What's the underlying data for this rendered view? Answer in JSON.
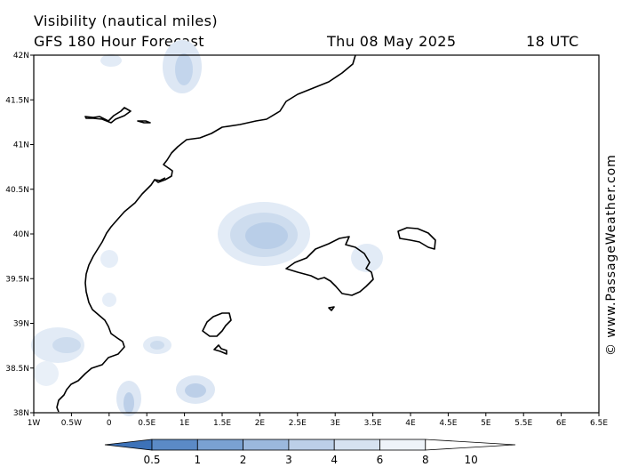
{
  "header": {
    "line1": "Visibility (nautical miles)",
    "line2": "GFS 180 Hour Forecast",
    "date": "Thu 08 May 2025",
    "time": "18 UTC"
  },
  "credit": "© www.PassageWeather.com",
  "map": {
    "lat_labels": [
      "42N",
      "41.5N",
      "41N",
      "40.5N",
      "40N",
      "39.5N",
      "39N",
      "38.5N",
      "38N"
    ],
    "lon_labels": [
      "1W",
      "0.5W",
      "0",
      "0.5E",
      "1E",
      "1.5E",
      "2E",
      "2.5E",
      "3E",
      "3.5E",
      "4E",
      "4.5E",
      "5E",
      "5.5E",
      "6E",
      "6.5E"
    ],
    "lat_range": [
      38,
      42
    ],
    "lon_range": [
      -1,
      6.5
    ]
  },
  "legend": {
    "labels": [
      "0.5",
      "1",
      "2",
      "3",
      "4",
      "6",
      "8",
      "10"
    ],
    "colors": [
      "#3d72b8",
      "#5b8ac6",
      "#7aa1d2",
      "#9bb8dd",
      "#bccfe8",
      "#d6e2f1",
      "#eef3f9",
      "#ffffff"
    ]
  }
}
